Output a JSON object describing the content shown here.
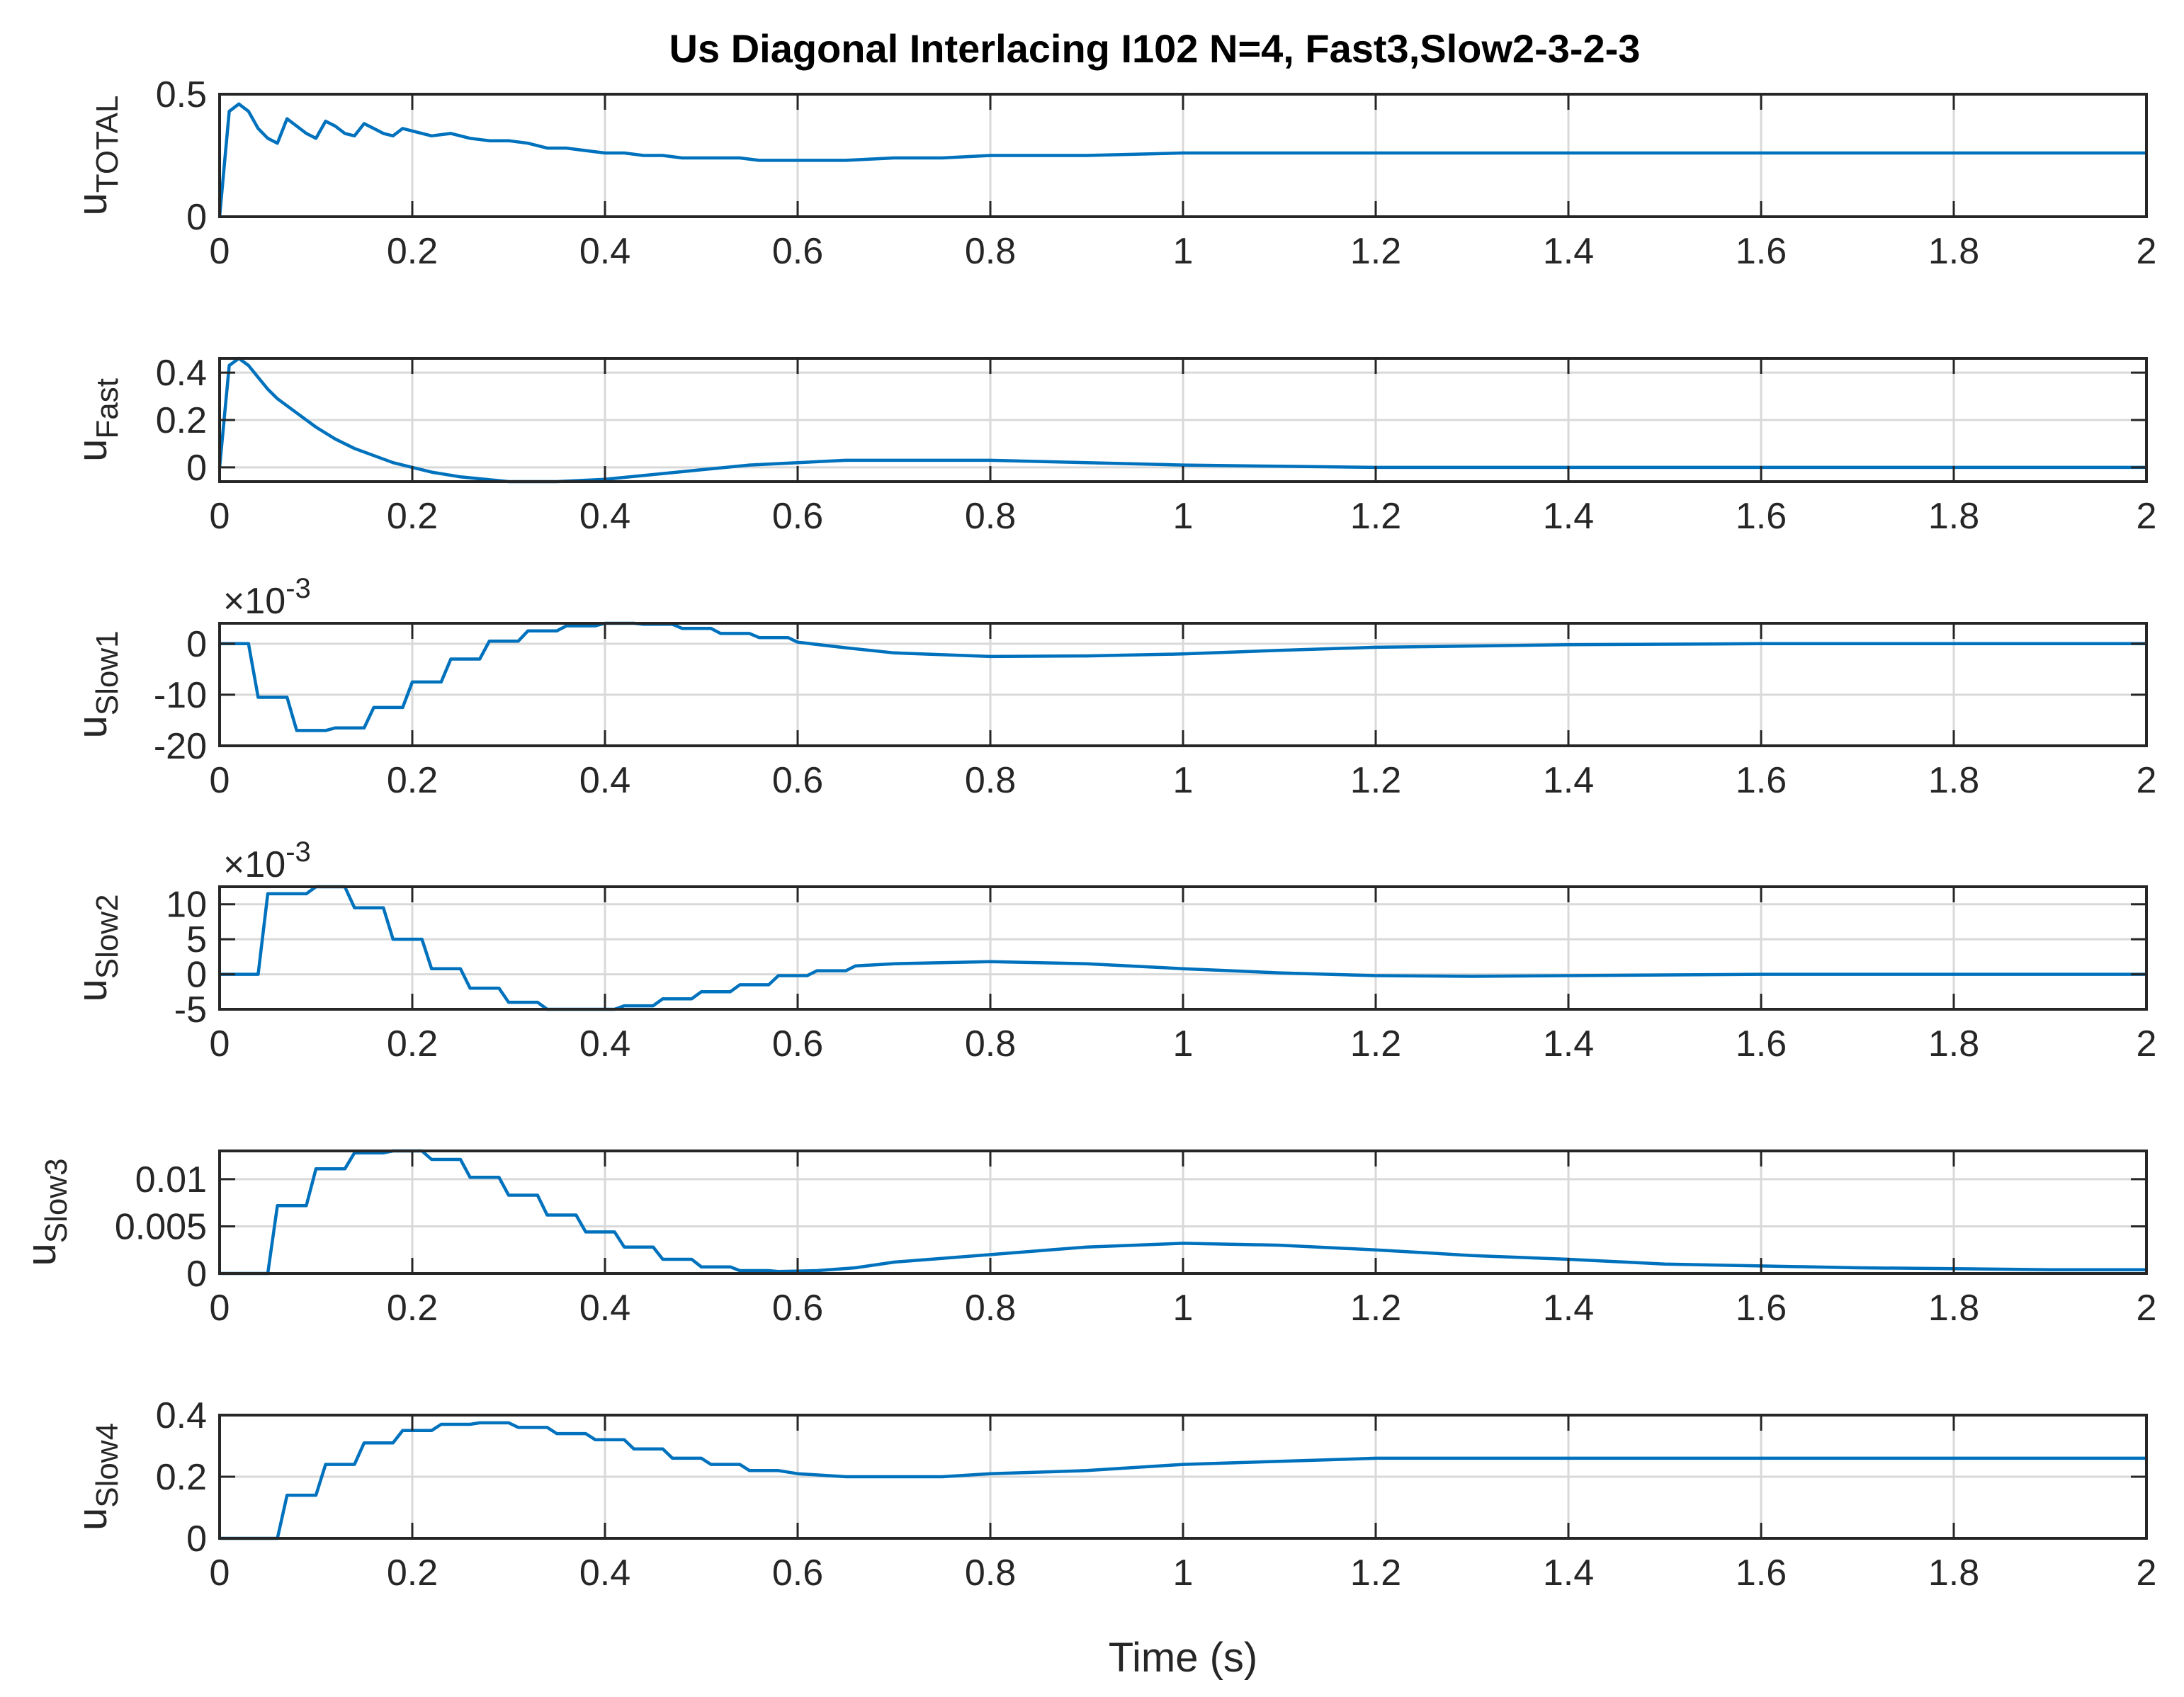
{
  "figure": {
    "title": "Us Diagonal Interlacing I102 N=4, Fast3,Slow2-3-2-3",
    "xlabel": "Time (s)",
    "line_color": "#0072BD",
    "grid_color": "#d9d9d9",
    "axis_color": "#262626"
  },
  "chart_data": [
    {
      "type": "line",
      "ylabel_main": "u",
      "ylabel_sub": "TOTAL",
      "exponent_label": "",
      "xlim": [
        0,
        2
      ],
      "ylim": [
        0,
        0.5
      ],
      "grid": true,
      "xticks": [
        0,
        0.2,
        0.4,
        0.6,
        0.8,
        1,
        1.2,
        1.4,
        1.6,
        1.8,
        2
      ],
      "xtick_labels": [
        "0",
        "0.2",
        "0.4",
        "0.6",
        "0.8",
        "1",
        "1.2",
        "1.4",
        "1.6",
        "1.8",
        "2"
      ],
      "yticks": [
        0,
        0.5
      ],
      "ytick_labels": [
        "0",
        "0.5"
      ],
      "series": [
        {
          "x": [
            0,
            0.01,
            0.02,
            0.03,
            0.04,
            0.05,
            0.06,
            0.07,
            0.08,
            0.09,
            0.1,
            0.11,
            0.12,
            0.13,
            0.14,
            0.15,
            0.16,
            0.17,
            0.18,
            0.19,
            0.2,
            0.22,
            0.24,
            0.26,
            0.28,
            0.3,
            0.32,
            0.34,
            0.36,
            0.38,
            0.4,
            0.42,
            0.44,
            0.46,
            0.48,
            0.5,
            0.52,
            0.54,
            0.56,
            0.58,
            0.6,
            0.65,
            0.7,
            0.75,
            0.8,
            0.9,
            1.0,
            1.1,
            1.2,
            1.4,
            1.6,
            1.8,
            2.0
          ],
          "y": [
            0,
            0.43,
            0.46,
            0.43,
            0.36,
            0.32,
            0.3,
            0.4,
            0.37,
            0.34,
            0.32,
            0.39,
            0.37,
            0.34,
            0.33,
            0.38,
            0.36,
            0.34,
            0.33,
            0.36,
            0.35,
            0.33,
            0.34,
            0.32,
            0.31,
            0.31,
            0.3,
            0.28,
            0.28,
            0.27,
            0.26,
            0.26,
            0.25,
            0.25,
            0.24,
            0.24,
            0.24,
            0.24,
            0.23,
            0.23,
            0.23,
            0.23,
            0.24,
            0.24,
            0.25,
            0.25,
            0.26,
            0.26,
            0.26,
            0.26,
            0.26,
            0.26,
            0.26
          ]
        }
      ]
    },
    {
      "type": "line",
      "ylabel_main": "u",
      "ylabel_sub": "Fast",
      "exponent_label": "",
      "xlim": [
        0,
        2
      ],
      "ylim": [
        -0.06,
        0.46
      ],
      "grid": true,
      "xticks": [
        0,
        0.2,
        0.4,
        0.6,
        0.8,
        1,
        1.2,
        1.4,
        1.6,
        1.8,
        2
      ],
      "xtick_labels": [
        "0",
        "0.2",
        "0.4",
        "0.6",
        "0.8",
        "1",
        "1.2",
        "1.4",
        "1.6",
        "1.8",
        "2"
      ],
      "yticks": [
        0,
        0.2,
        0.4
      ],
      "ytick_labels": [
        "0",
        "0.2",
        "0.4"
      ],
      "series": [
        {
          "x": [
            0,
            0.01,
            0.02,
            0.03,
            0.04,
            0.05,
            0.06,
            0.08,
            0.1,
            0.12,
            0.14,
            0.16,
            0.18,
            0.2,
            0.22,
            0.25,
            0.3,
            0.35,
            0.4,
            0.45,
            0.5,
            0.55,
            0.6,
            0.65,
            0.7,
            0.8,
            0.9,
            1.0,
            1.1,
            1.2,
            1.4,
            1.6,
            1.8,
            2.0
          ],
          "y": [
            0,
            0.43,
            0.46,
            0.43,
            0.38,
            0.33,
            0.29,
            0.23,
            0.17,
            0.12,
            0.08,
            0.05,
            0.02,
            0.0,
            -0.02,
            -0.04,
            -0.06,
            -0.06,
            -0.05,
            -0.03,
            -0.01,
            0.01,
            0.02,
            0.03,
            0.03,
            0.03,
            0.02,
            0.01,
            0.005,
            0.0,
            0.0,
            0.0,
            0.0,
            0.0
          ]
        }
      ]
    },
    {
      "type": "line",
      "ylabel_main": "u",
      "ylabel_sub": "Slow1",
      "exponent_label": "×10-3",
      "xlim": [
        0,
        2
      ],
      "ylim": [
        -20,
        4
      ],
      "grid": true,
      "xticks": [
        0,
        0.2,
        0.4,
        0.6,
        0.8,
        1,
        1.2,
        1.4,
        1.6,
        1.8,
        2
      ],
      "xtick_labels": [
        "0",
        "0.2",
        "0.4",
        "0.6",
        "0.8",
        "1",
        "1.2",
        "1.4",
        "1.6",
        "1.8",
        "2"
      ],
      "yticks": [
        -20,
        -10,
        0
      ],
      "ytick_labels": [
        "-20",
        "-10",
        "0"
      ],
      "series": [
        {
          "x": [
            0,
            0.03,
            0.04,
            0.07,
            0.08,
            0.11,
            0.12,
            0.15,
            0.16,
            0.19,
            0.2,
            0.23,
            0.24,
            0.27,
            0.28,
            0.31,
            0.32,
            0.35,
            0.36,
            0.39,
            0.4,
            0.43,
            0.44,
            0.47,
            0.48,
            0.51,
            0.52,
            0.55,
            0.56,
            0.59,
            0.6,
            0.65,
            0.7,
            0.8,
            0.9,
            1.0,
            1.1,
            1.2,
            1.4,
            1.6,
            1.8,
            2.0
          ],
          "y": [
            0,
            0,
            -10.5,
            -10.5,
            -17,
            -17,
            -16.5,
            -16.5,
            -12.5,
            -12.5,
            -7.5,
            -7.5,
            -3,
            -3,
            0.5,
            0.5,
            2.5,
            2.5,
            3.5,
            3.5,
            4,
            4,
            3.8,
            3.8,
            3,
            3,
            2,
            2,
            1.2,
            1.2,
            0.3,
            -0.8,
            -1.8,
            -2.5,
            -2.4,
            -2.0,
            -1.3,
            -0.7,
            -0.2,
            0,
            0,
            0
          ]
        }
      ]
    },
    {
      "type": "line",
      "ylabel_main": "u",
      "ylabel_sub": "Slow2",
      "exponent_label": "×10-3",
      "xlim": [
        0,
        2
      ],
      "ylim": [
        -5,
        12.5
      ],
      "grid": true,
      "xticks": [
        0,
        0.2,
        0.4,
        0.6,
        0.8,
        1,
        1.2,
        1.4,
        1.6,
        1.8,
        2
      ],
      "xtick_labels": [
        "0",
        "0.2",
        "0.4",
        "0.6",
        "0.8",
        "1",
        "1.2",
        "1.4",
        "1.6",
        "1.8",
        "2"
      ],
      "yticks": [
        -5,
        0,
        5,
        10
      ],
      "ytick_labels": [
        "-5",
        "0",
        "5",
        "10"
      ],
      "series": [
        {
          "x": [
            0,
            0.04,
            0.05,
            0.09,
            0.1,
            0.13,
            0.14,
            0.17,
            0.18,
            0.21,
            0.22,
            0.25,
            0.26,
            0.29,
            0.3,
            0.33,
            0.34,
            0.37,
            0.38,
            0.41,
            0.42,
            0.45,
            0.46,
            0.49,
            0.5,
            0.53,
            0.54,
            0.57,
            0.58,
            0.61,
            0.62,
            0.65,
            0.66,
            0.7,
            0.8,
            0.9,
            1.0,
            1.1,
            1.2,
            1.3,
            1.4,
            1.6,
            1.8,
            2.0
          ],
          "y": [
            0,
            0,
            11.5,
            11.5,
            12.5,
            12.5,
            9.5,
            9.5,
            5,
            5,
            0.8,
            0.8,
            -2,
            -2,
            -4,
            -4,
            -5,
            -5,
            -5,
            -5,
            -4.5,
            -4.5,
            -3.5,
            -3.5,
            -2.5,
            -2.5,
            -1.5,
            -1.5,
            -0.2,
            -0.2,
            0.5,
            0.5,
            1.2,
            1.5,
            1.8,
            1.5,
            0.8,
            0.2,
            -0.2,
            -0.3,
            -0.2,
            0,
            0,
            0
          ]
        }
      ]
    },
    {
      "type": "line",
      "ylabel_main": "u",
      "ylabel_sub": "Slow3",
      "exponent_label": "",
      "xlim": [
        0,
        2
      ],
      "ylim": [
        0,
        0.013
      ],
      "grid": true,
      "xticks": [
        0,
        0.2,
        0.4,
        0.6,
        0.8,
        1,
        1.2,
        1.4,
        1.6,
        1.8,
        2
      ],
      "xtick_labels": [
        "0",
        "0.2",
        "0.4",
        "0.6",
        "0.8",
        "1",
        "1.2",
        "1.4",
        "1.6",
        "1.8",
        "2"
      ],
      "yticks": [
        0,
        0.005,
        0.01
      ],
      "ytick_labels": [
        "0",
        "0.005",
        "0.01"
      ],
      "series": [
        {
          "x": [
            0,
            0.05,
            0.06,
            0.09,
            0.1,
            0.13,
            0.14,
            0.17,
            0.18,
            0.21,
            0.22,
            0.25,
            0.26,
            0.29,
            0.3,
            0.33,
            0.34,
            0.37,
            0.38,
            0.41,
            0.42,
            0.45,
            0.46,
            0.49,
            0.5,
            0.53,
            0.54,
            0.57,
            0.58,
            0.62,
            0.66,
            0.7,
            0.8,
            0.9,
            1.0,
            1.1,
            1.2,
            1.3,
            1.4,
            1.5,
            1.6,
            1.7,
            1.8,
            1.9,
            2.0
          ],
          "y": [
            0,
            0,
            0.0072,
            0.0072,
            0.0111,
            0.0111,
            0.0128,
            0.0128,
            0.013,
            0.013,
            0.0121,
            0.0121,
            0.0102,
            0.0102,
            0.0083,
            0.0083,
            0.0062,
            0.0062,
            0.0044,
            0.0044,
            0.0028,
            0.0028,
            0.0015,
            0.0015,
            0.0007,
            0.0007,
            0.0003,
            0.0003,
            0.0002,
            0.0003,
            0.0006,
            0.0012,
            0.002,
            0.0028,
            0.0032,
            0.003,
            0.0025,
            0.0019,
            0.0015,
            0.001,
            0.0008,
            0.0006,
            0.0005,
            0.0004,
            0.0004
          ]
        }
      ]
    },
    {
      "type": "line",
      "ylabel_main": "u",
      "ylabel_sub": "Slow4",
      "exponent_label": "",
      "xlim": [
        0,
        2
      ],
      "ylim": [
        0,
        0.4
      ],
      "grid": true,
      "xticks": [
        0,
        0.2,
        0.4,
        0.6,
        0.8,
        1,
        1.2,
        1.4,
        1.6,
        1.8,
        2
      ],
      "xtick_labels": [
        "0",
        "0.2",
        "0.4",
        "0.6",
        "0.8",
        "1",
        "1.2",
        "1.4",
        "1.6",
        "1.8",
        "2"
      ],
      "yticks": [
        0,
        0.2,
        0.4
      ],
      "ytick_labels": [
        "0",
        "0.2",
        "0.4"
      ],
      "series": [
        {
          "x": [
            0,
            0.06,
            0.07,
            0.1,
            0.11,
            0.14,
            0.15,
            0.18,
            0.19,
            0.22,
            0.23,
            0.26,
            0.27,
            0.3,
            0.31,
            0.34,
            0.35,
            0.38,
            0.39,
            0.42,
            0.43,
            0.46,
            0.47,
            0.5,
            0.51,
            0.54,
            0.55,
            0.58,
            0.6,
            0.65,
            0.7,
            0.75,
            0.8,
            0.9,
            1.0,
            1.1,
            1.2,
            1.4,
            1.6,
            1.8,
            2.0
          ],
          "y": [
            0,
            0,
            0.14,
            0.14,
            0.24,
            0.24,
            0.31,
            0.31,
            0.35,
            0.35,
            0.37,
            0.37,
            0.375,
            0.375,
            0.36,
            0.36,
            0.34,
            0.34,
            0.32,
            0.32,
            0.29,
            0.29,
            0.26,
            0.26,
            0.24,
            0.24,
            0.22,
            0.22,
            0.21,
            0.2,
            0.2,
            0.2,
            0.21,
            0.22,
            0.24,
            0.25,
            0.26,
            0.26,
            0.26,
            0.26,
            0.26
          ]
        }
      ]
    }
  ]
}
